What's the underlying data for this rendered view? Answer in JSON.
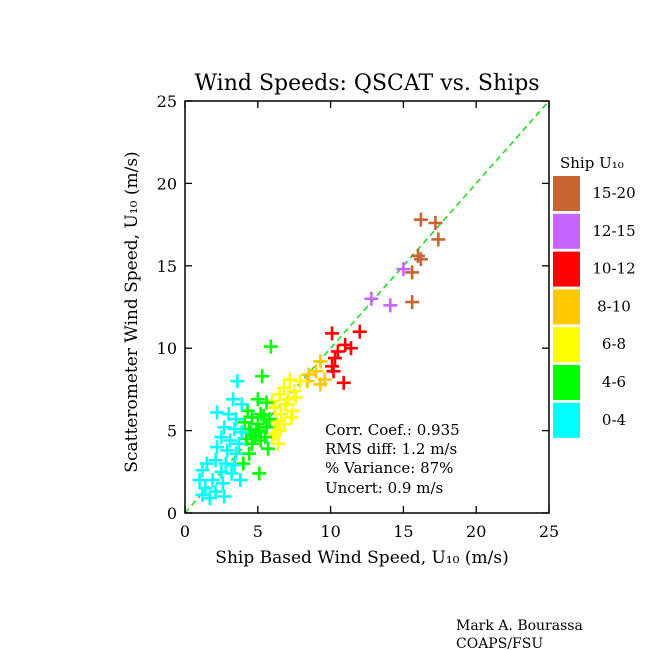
{
  "chart_data": {
    "type": "scatter",
    "title": "Wind Speeds: QSCAT vs. Ships",
    "xlabel": "Ship Based Wind Speed, U₁₀  (m/s)",
    "ylabel": "Scatterometer Wind Speed, U₁₀  (m/s)",
    "xlim": [
      0,
      25
    ],
    "ylim": [
      0,
      25
    ],
    "xticks": [
      "0",
      "5",
      "10",
      "15",
      "20",
      "25"
    ],
    "yticks": [
      "0",
      "5",
      "10",
      "15",
      "20",
      "25"
    ],
    "marker": "+",
    "grid": false,
    "one_to_one_line": {
      "style": "dashed",
      "color": "#22dd22"
    },
    "legend": {
      "title": "Ship U₁₀",
      "position": "right",
      "entries": [
        {
          "label": "15-20",
          "color": "#c86432"
        },
        {
          "label": "12-15",
          "color": "#c864ff"
        },
        {
          "label": "10-12",
          "color": "#ff0000"
        },
        {
          "label": "8-10",
          "color": "#ffc800"
        },
        {
          "label": "6-8",
          "color": "#ffff00"
        },
        {
          "label": "4-6",
          "color": "#00ff00"
        },
        {
          "label": "0-4",
          "color": "#00ffff"
        }
      ]
    },
    "series": [
      {
        "name": "15-20",
        "color": "#c86432",
        "points": [
          [
            16.2,
            17.8
          ],
          [
            17.2,
            17.6
          ],
          [
            17.4,
            16.6
          ],
          [
            16.0,
            15.6
          ],
          [
            16.2,
            15.4
          ],
          [
            15.6,
            14.6
          ],
          [
            15.6,
            12.8
          ]
        ]
      },
      {
        "name": "12-15",
        "color": "#c864ff",
        "points": [
          [
            15.0,
            14.8
          ],
          [
            12.8,
            13.0
          ],
          [
            14.1,
            12.6
          ]
        ]
      },
      {
        "name": "10-12",
        "color": "#ff0000",
        "points": [
          [
            10.1,
            10.9
          ],
          [
            12.0,
            11.0
          ],
          [
            11.0,
            10.2
          ],
          [
            11.4,
            10.0
          ],
          [
            10.5,
            9.8
          ],
          [
            10.3,
            9.4
          ],
          [
            10.1,
            8.9
          ],
          [
            10.2,
            8.6
          ],
          [
            10.9,
            7.9
          ]
        ]
      },
      {
        "name": "8-10",
        "color": "#ffc800",
        "points": [
          [
            9.3,
            9.2
          ],
          [
            9.0,
            8.6
          ],
          [
            8.5,
            8.4
          ],
          [
            9.6,
            8.1
          ],
          [
            9.3,
            7.8
          ],
          [
            8.4,
            8.0
          ]
        ]
      },
      {
        "name": "6-8",
        "color": "#ffff00",
        "points": [
          [
            7.2,
            8.1
          ],
          [
            7.9,
            8.0
          ],
          [
            6.8,
            7.6
          ],
          [
            7.5,
            7.4
          ],
          [
            6.5,
            7.2
          ],
          [
            7.1,
            6.9
          ],
          [
            6.9,
            6.6
          ],
          [
            6.2,
            6.4
          ],
          [
            7.4,
            6.2
          ],
          [
            6.6,
            6.0
          ],
          [
            7.3,
            5.8
          ],
          [
            6.3,
            5.6
          ],
          [
            6.8,
            5.4
          ],
          [
            6.1,
            5.2
          ],
          [
            6.5,
            5.0
          ],
          [
            6.2,
            4.8
          ],
          [
            6.0,
            4.6
          ],
          [
            6.4,
            4.2
          ],
          [
            7.6,
            7.0
          ],
          [
            6.0,
            6.8
          ]
        ]
      },
      {
        "name": "4-6",
        "color": "#00ff00",
        "points": [
          [
            5.9,
            10.1
          ],
          [
            5.3,
            8.3
          ],
          [
            5.0,
            6.9
          ],
          [
            5.6,
            6.7
          ],
          [
            4.3,
            6.2
          ],
          [
            5.2,
            6.0
          ],
          [
            4.6,
            5.8
          ],
          [
            5.8,
            5.7
          ],
          [
            4.1,
            5.5
          ],
          [
            5.0,
            5.4
          ],
          [
            5.6,
            5.2
          ],
          [
            4.4,
            5.1
          ],
          [
            5.1,
            5.0
          ],
          [
            4.8,
            4.7
          ],
          [
            5.5,
            4.6
          ],
          [
            4.2,
            4.5
          ],
          [
            5.2,
            4.4
          ],
          [
            4.6,
            4.2
          ],
          [
            5.7,
            3.9
          ],
          [
            4.4,
            3.6
          ],
          [
            5.1,
            2.4
          ],
          [
            4.0,
            3.0
          ],
          [
            4.9,
            4.9
          ],
          [
            5.4,
            5.9
          ],
          [
            4.5,
            4.9
          ]
        ]
      },
      {
        "name": "0-4",
        "color": "#00ffff",
        "points": [
          [
            3.6,
            8.0
          ],
          [
            3.3,
            6.9
          ],
          [
            3.9,
            6.6
          ],
          [
            2.2,
            6.1
          ],
          [
            3.0,
            6.0
          ],
          [
            3.5,
            5.7
          ],
          [
            2.7,
            5.2
          ],
          [
            3.4,
            5.1
          ],
          [
            3.9,
            4.9
          ],
          [
            2.5,
            4.6
          ],
          [
            3.1,
            4.4
          ],
          [
            3.7,
            4.2
          ],
          [
            2.2,
            4.0
          ],
          [
            2.9,
            3.8
          ],
          [
            3.5,
            3.6
          ],
          [
            1.5,
            3.0
          ],
          [
            2.1,
            3.2
          ],
          [
            2.8,
            3.0
          ],
          [
            3.4,
            2.9
          ],
          [
            1.2,
            2.6
          ],
          [
            2.5,
            2.5
          ],
          [
            3.2,
            2.4
          ],
          [
            1.0,
            2.0
          ],
          [
            1.9,
            2.0
          ],
          [
            2.6,
            1.8
          ],
          [
            3.8,
            2.0
          ],
          [
            1.4,
            1.5
          ],
          [
            2.1,
            1.3
          ],
          [
            1.2,
            1.1
          ],
          [
            2.7,
            1.0
          ],
          [
            1.7,
            0.9
          ]
        ]
      }
    ],
    "stats": {
      "corr": "Corr. Coef.: 0.935",
      "rms": "RMS diff: 1.2 m/s",
      "variance": "% Variance: 87%",
      "uncert": "Uncert:  0.9 m/s"
    }
  },
  "credit": {
    "line1": "Mark A. Bourassa",
    "line2": "COAPS/FSU"
  }
}
